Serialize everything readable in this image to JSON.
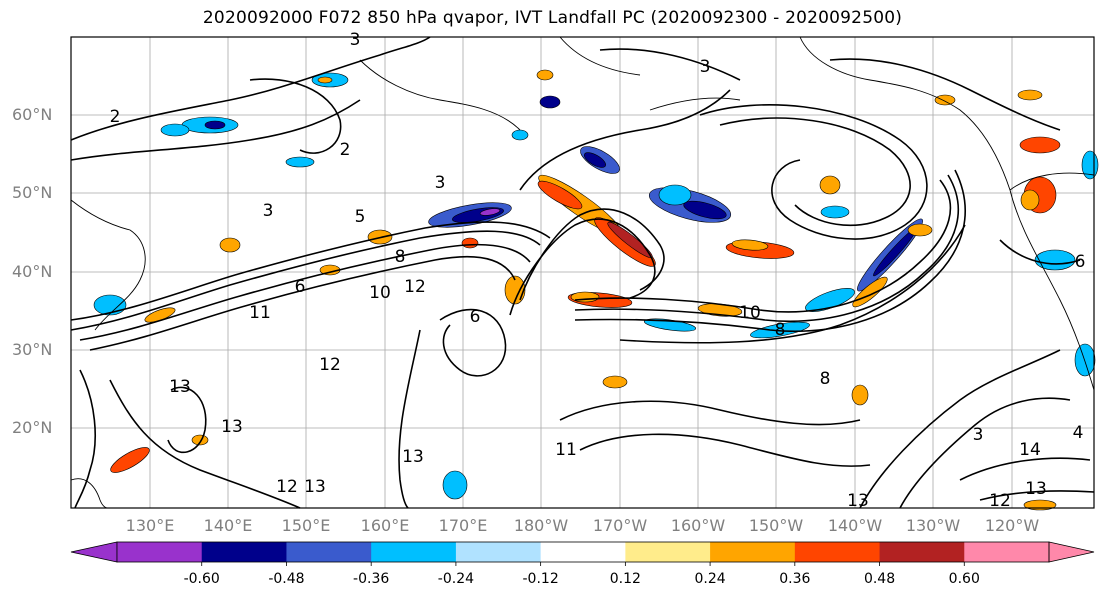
{
  "title": "2020092000 F072 850 hPa qvapor, IVT Landfall PC (2020092300 - 2020092500)",
  "lat_labels": [
    "60°N",
    "50°N",
    "40°N",
    "30°N",
    "20°N"
  ],
  "lon_labels": [
    "130°E",
    "140°E",
    "150°E",
    "160°E",
    "170°E",
    "180°W",
    "170°W",
    "160°W",
    "150°W",
    "140°W",
    "130°W",
    "120°W"
  ],
  "contour_labels": [
    "3",
    "3",
    "3",
    "2",
    "2",
    "3",
    "5",
    "8",
    "10",
    "12",
    "6",
    "11",
    "13",
    "13",
    "12",
    "13",
    "12",
    "13",
    "11",
    "10",
    "8",
    "8",
    "3",
    "14",
    "13",
    "12",
    "13",
    "6",
    "4",
    "6"
  ],
  "colorbar": {
    "ticks": [
      "-0.60",
      "-0.48",
      "-0.36",
      "-0.24",
      "-0.12",
      "0.12",
      "0.24",
      "0.36",
      "0.48",
      "0.60"
    ],
    "colors": [
      "#9932cc",
      "#00008b",
      "#3a5bcd",
      "#00bfff",
      "#b0e2ff",
      "#ffffff",
      "#ffec8b",
      "#ffa500",
      "#ff4500",
      "#b22222",
      "#ff88aa"
    ]
  }
}
